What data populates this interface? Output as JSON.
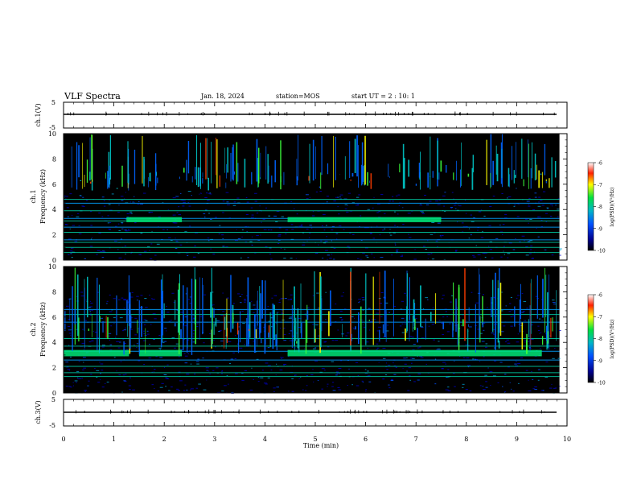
{
  "header": {
    "title": "VLF Spectra",
    "date": "Jan. 18, 2024",
    "station": "station=MOS",
    "start": "start UT =  2 : 10: 1"
  },
  "chart_data": [
    {
      "type": "line",
      "name": "ch1-waveform",
      "ylabel": "ch.1(V)",
      "ylim": [
        -5,
        5
      ],
      "yticks": [
        "5",
        "-5"
      ],
      "xlim": [
        0,
        10
      ],
      "x": [
        0,
        9.85
      ],
      "y": [
        0,
        0
      ]
    },
    {
      "type": "heatmap",
      "name": "ch1-spectrogram",
      "ylabel_top": "ch.1",
      "ylabel": "Frequency (kHz)",
      "ylim": [
        0,
        10
      ],
      "yticks": [
        "0",
        "2",
        "4",
        "6",
        "8",
        "10"
      ],
      "xlim": [
        0,
        9.85
      ],
      "colorbar": {
        "label": "log(PSD)(V²/Hz)",
        "range": [
          -10,
          -6
        ],
        "ticks": [
          "-6",
          "-7",
          "-8",
          "-9",
          "-10"
        ]
      },
      "bands_khz": [
        0.6,
        1.0,
        1.4,
        1.6,
        2.2,
        2.6,
        3.1,
        3.3,
        3.9,
        4.5,
        4.8
      ],
      "strong_band_khz": [
        3.0,
        3.4
      ],
      "strong_band_segments_min": [
        [
          1.25,
          2.35
        ],
        [
          4.45,
          7.5
        ]
      ]
    },
    {
      "type": "heatmap",
      "name": "ch2-spectrogram",
      "ylabel_top": "ch.2",
      "ylabel": "Frequency (kHz)",
      "ylim": [
        0,
        10
      ],
      "yticks": [
        "0",
        "2",
        "4",
        "6",
        "8",
        "10"
      ],
      "xlim": [
        0,
        9.85
      ],
      "colorbar": {
        "label": "log(PSD)(V²/Hz)",
        "range": [
          -10,
          -6
        ],
        "ticks": [
          "-6",
          "-7",
          "-8",
          "-9",
          "-10"
        ]
      },
      "bands_khz": [
        1.3,
        1.6,
        2.1,
        2.6,
        3.3,
        3.7,
        4.3,
        5.6,
        6.2,
        6.6
      ],
      "strong_band_khz": [
        2.9,
        3.4
      ],
      "strong_band_segments_min": [
        [
          0,
          1.3
        ],
        [
          1.5,
          2.35
        ],
        [
          4.45,
          9.5
        ]
      ]
    },
    {
      "type": "line",
      "name": "ch3-waveform",
      "ylabel": "ch.3(V)",
      "ylim": [
        -5,
        5
      ],
      "yticks": [
        "5",
        "-5"
      ],
      "xlim": [
        0,
        10
      ],
      "x": [
        0,
        9.85
      ],
      "y": [
        -0.5,
        -0.5
      ]
    }
  ],
  "xaxis": {
    "label": "Time (min)",
    "ticks": [
      "0",
      "1",
      "2",
      "3",
      "4",
      "5",
      "6",
      "7",
      "8",
      "9",
      "10"
    ]
  }
}
